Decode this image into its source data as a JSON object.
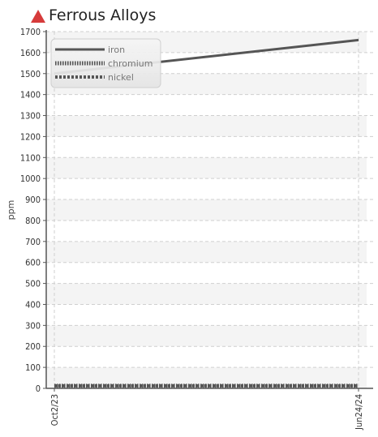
{
  "title": "Ferrous Alloys",
  "alert_color": "#d63b3b",
  "chart_data": {
    "type": "line",
    "title": "Ferrous Alloys",
    "xlabel": "",
    "ylabel": "ppm",
    "x": [
      "Oct2/23",
      "Jun24/24"
    ],
    "x_tick_labels": [
      "Oct2/23",
      "Jun24/24"
    ],
    "ylim": [
      0,
      1700
    ],
    "y_ticks": [
      0,
      100,
      200,
      300,
      400,
      500,
      600,
      700,
      800,
      900,
      1000,
      1100,
      1200,
      1300,
      1400,
      1500,
      1600,
      1700
    ],
    "grid": true,
    "legend_position": "top-left",
    "series": [
      {
        "name": "iron",
        "style": "solid",
        "color": "#555555",
        "values": [
          1500,
          1660
        ]
      },
      {
        "name": "chromium",
        "style": "dotted",
        "color": "#555555",
        "values": [
          12,
          12
        ]
      },
      {
        "name": "nickel",
        "style": "dashed",
        "color": "#555555",
        "values": [
          12,
          12
        ]
      }
    ]
  }
}
